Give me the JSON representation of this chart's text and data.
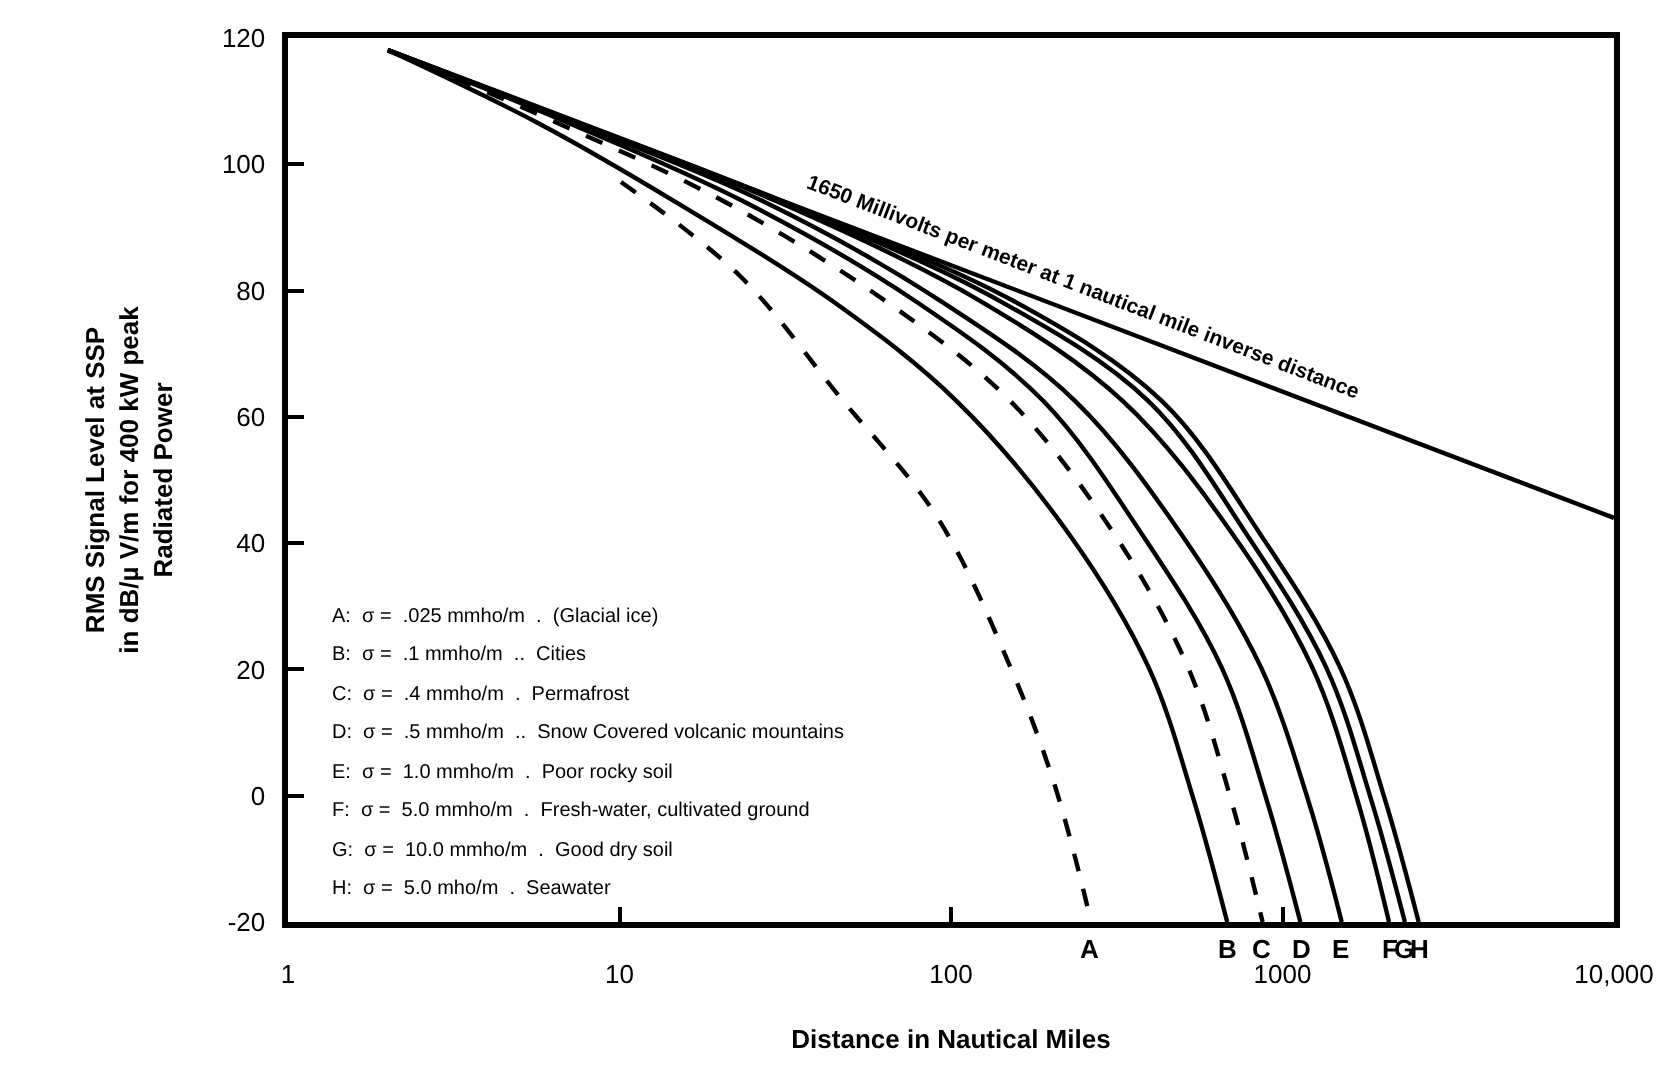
{
  "chart_data": {
    "type": "line",
    "xlabel": "Distance in Nautical Miles",
    "ylabel": "RMS Signal Level at SSP\nin dB/µ V/m for 400 kW peak\nRadiated Power",
    "log": "x",
    "xlim": [
      1,
      10000
    ],
    "xticks": [
      1,
      10,
      100,
      1000,
      {
        "value": 10000,
        "label": "10,000"
      }
    ],
    "ylim": [
      -20,
      120
    ],
    "yticks": [
      -20,
      0,
      20,
      40,
      60,
      80,
      100,
      120
    ],
    "legend": false,
    "marker": "none",
    "series": [
      {
        "name": "A",
        "color": "#000000",
        "line_style": "dashed",
        "x": [
          10.1,
          23.1,
          45.8,
          90.9,
          151,
          206,
          261,
          264
        ],
        "values": [
          97.2,
          82.3,
          63.4,
          44.1,
          20.4,
          1.5,
          -18.7,
          -20
        ]
      },
      {
        "name": "B",
        "color": "#000000",
        "line_style": "solid",
        "x": [
          2,
          5.6,
          14.7,
          44.0,
          104,
          228,
          394,
          540,
          681
        ],
        "values": [
          118.1,
          106.7,
          94.1,
          78.3,
          62.5,
          41.3,
          20.4,
          -0.7,
          -20
        ]
      },
      {
        "name": "C",
        "color": "#000000",
        "line_style": "dashed",
        "x": [
          2,
          6.4,
          20.7,
          63.6,
          151,
          312,
          518,
          700,
          871
        ],
        "values": [
          118.1,
          106.7,
          94.1,
          78.3,
          62.5,
          41.3,
          20.4,
          -0.7,
          -20
        ]
      },
      {
        "name": "D",
        "color": "#000000",
        "line_style": "solid",
        "x": [
          2,
          6.9,
          23.7,
          78.2,
          190,
          378,
          654,
          896,
          1132
        ],
        "values": [
          118.1,
          106.7,
          94.1,
          78.3,
          62.5,
          41.3,
          20.4,
          -0.7,
          -20
        ]
      },
      {
        "name": "E",
        "color": "#000000",
        "line_style": "solid",
        "x": [
          2,
          7.2,
          27.2,
          93.4,
          237,
          497,
          860,
          1195,
          1509
        ],
        "values": [
          118.1,
          106.7,
          94.1,
          78.3,
          62.5,
          41.3,
          20.4,
          -0.7,
          -20
        ]
      },
      {
        "name": "F",
        "color": "#000000",
        "line_style": "solid",
        "x": [
          2,
          7.3,
          29.9,
          123,
          330,
          710,
          1228,
          1683,
          2096
        ],
        "values": [
          118.1,
          106.7,
          94.1,
          78.3,
          62.5,
          41.3,
          20.4,
          -0.7,
          -20
        ]
      },
      {
        "name": "G",
        "color": "#000000",
        "line_style": "solid",
        "x": [
          2,
          7.4,
          30.8,
          141,
          394,
          782,
          1352,
          1853,
          2340
        ],
        "values": [
          118.1,
          106.7,
          94.1,
          78.3,
          62.5,
          41.3,
          20.4,
          -0.7,
          -20
        ]
      },
      {
        "name": "H",
        "color": "#000000",
        "line_style": "solid",
        "x": [
          2,
          7.5,
          31.2,
          155,
          433,
          860,
          1489,
          2040,
          2575
        ],
        "values": [
          118.1,
          106.7,
          94.1,
          78.3,
          62.5,
          41.3,
          20.4,
          -0.7,
          -20
        ]
      },
      {
        "color": "#000000",
        "line_style": "solid",
        "x": [
          2,
          10000
        ],
        "values": [
          118,
          44
        ]
      }
    ],
    "annotations": [
      "1650 Millivolts per meter at 1 nautical mile inverse distance",
      "A:  σ =  .025 mmho/m  .  (Glacial ice)",
      "B:  σ =  .1 mmho/m  ..  Cities",
      "C:  σ =  .4 mmho/m  .  Permafrost",
      "D:  σ =  .5 mmho/m  ..  Snow Covered volcanic mountains",
      "E:  σ =  1.0 mmho/m  .  Poor rocky soil",
      "F:  σ =  5.0 mmho/m  .  Fresh-water, cultivated ground",
      "G:  σ =  10.0 mmho/m  .  Good dry soil",
      "H:  σ =  5.0 mho/m  .  Seawater"
    ]
  }
}
